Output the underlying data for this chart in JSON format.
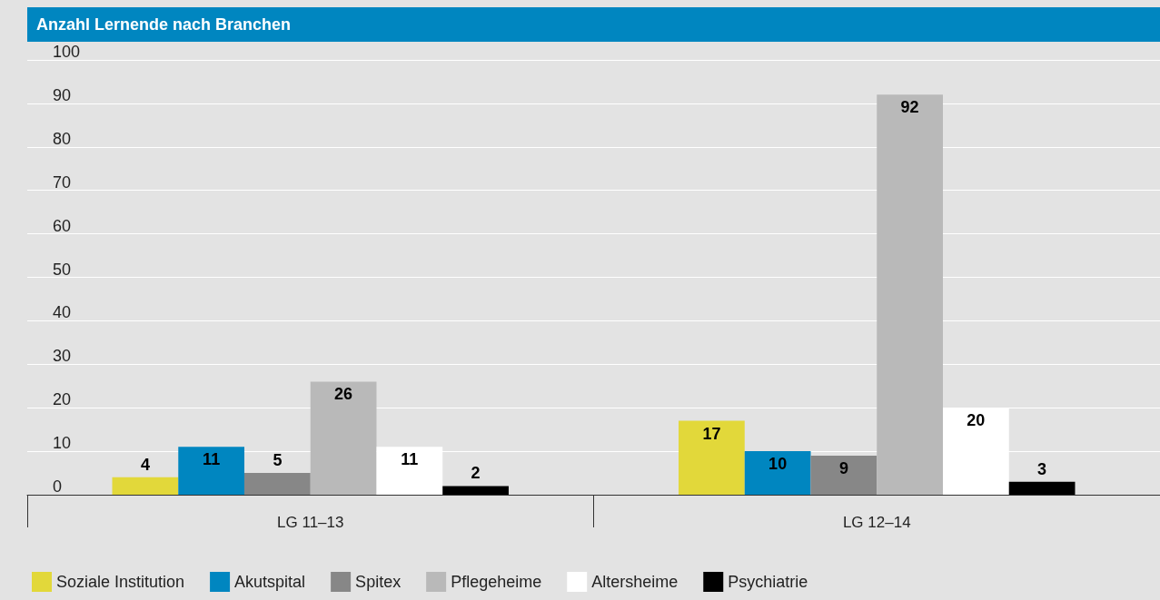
{
  "chart_data": {
    "type": "bar",
    "title": "Anzahl Lernende nach Branchen",
    "categories": [
      "LG 11–13",
      "LG 12–14"
    ],
    "series": [
      {
        "name": "Soziale Institution",
        "color": "#e2d83a",
        "values": [
          4,
          17
        ]
      },
      {
        "name": "Akutspital",
        "color": "#0086c0",
        "values": [
          11,
          10
        ]
      },
      {
        "name": "Spitex",
        "color": "#878787",
        "values": [
          5,
          9
        ]
      },
      {
        "name": "Pflegeheime",
        "color": "#b9b9b9",
        "values": [
          26,
          92
        ]
      },
      {
        "name": "Altersheime",
        "color": "#ffffff",
        "values": [
          11,
          20
        ]
      },
      {
        "name": "Psychiatrie",
        "color": "#000000",
        "values": [
          2,
          3
        ]
      }
    ],
    "ylim": [
      0,
      100
    ],
    "yticks": [
      0,
      10,
      20,
      30,
      40,
      50,
      60,
      70,
      80,
      90,
      100
    ],
    "grid": "y",
    "legend": "bottom left",
    "data_labels": true
  }
}
